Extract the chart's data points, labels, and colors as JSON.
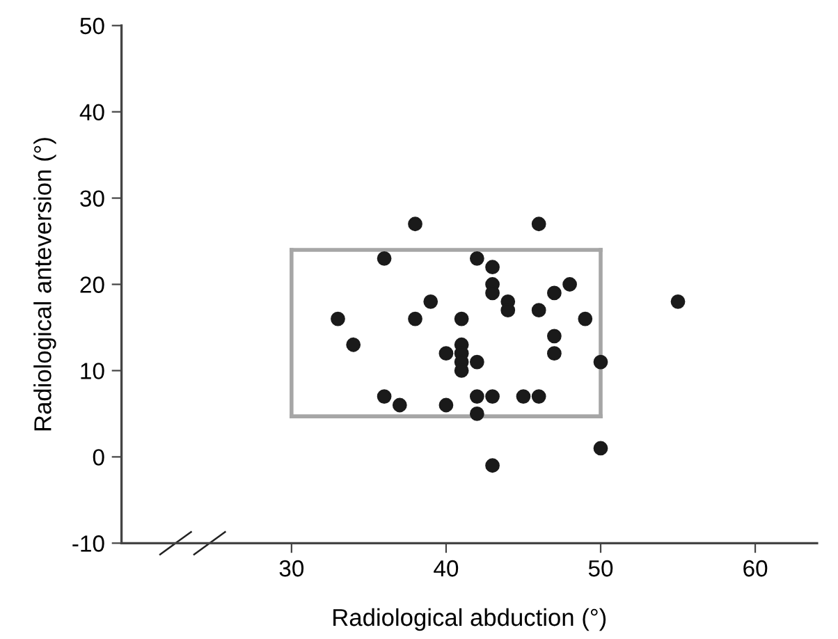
{
  "chart_data": {
    "type": "scatter",
    "xlabel": "Radiological abduction (°)",
    "ylabel": "Radiological anteversion (°)",
    "xlim": [
      19,
      64
    ],
    "ylim": [
      -10,
      50
    ],
    "xticks": [
      30,
      40,
      50,
      60
    ],
    "yticks": [
      -10,
      0,
      10,
      20,
      30,
      40,
      50
    ],
    "grid": false,
    "legend": false,
    "marker": "circle",
    "series": [
      {
        "color": "#1a1a1a",
        "x": [
          38,
          46,
          36,
          42,
          43,
          43,
          48,
          43,
          47,
          39,
          44,
          44,
          46,
          55,
          33,
          38,
          41,
          49,
          34,
          47,
          41,
          40,
          41,
          47,
          41,
          42,
          50,
          41,
          36,
          42,
          43,
          45,
          46,
          37,
          40,
          42,
          50,
          43
        ],
        "values": [
          27,
          27,
          23,
          23,
          22,
          20,
          20,
          19,
          19,
          18,
          18,
          17,
          17,
          18,
          16,
          16,
          16,
          16,
          13,
          14,
          13,
          12,
          12,
          12,
          11,
          11,
          11,
          10,
          7,
          7,
          7,
          7,
          7,
          6,
          6,
          5,
          1,
          -1
        ]
      },
      {
        "type": "line",
        "color": "#a6a6a6",
        "marker": "none",
        "x": [
          30,
          50
        ],
        "values": [
          24,
          24
        ]
      },
      {
        "type": "line",
        "color": "#a6a6a6",
        "marker": "none",
        "x": [
          50,
          50
        ],
        "values": [
          24,
          4.7
        ]
      },
      {
        "type": "line",
        "color": "#a6a6a6",
        "marker": "none",
        "x": [
          30,
          50
        ],
        "values": [
          4.7,
          4.7
        ]
      },
      {
        "type": "line",
        "color": "#a6a6a6",
        "marker": "none",
        "x": [
          30,
          30
        ],
        "values": [
          4.7,
          24
        ]
      }
    ]
  }
}
